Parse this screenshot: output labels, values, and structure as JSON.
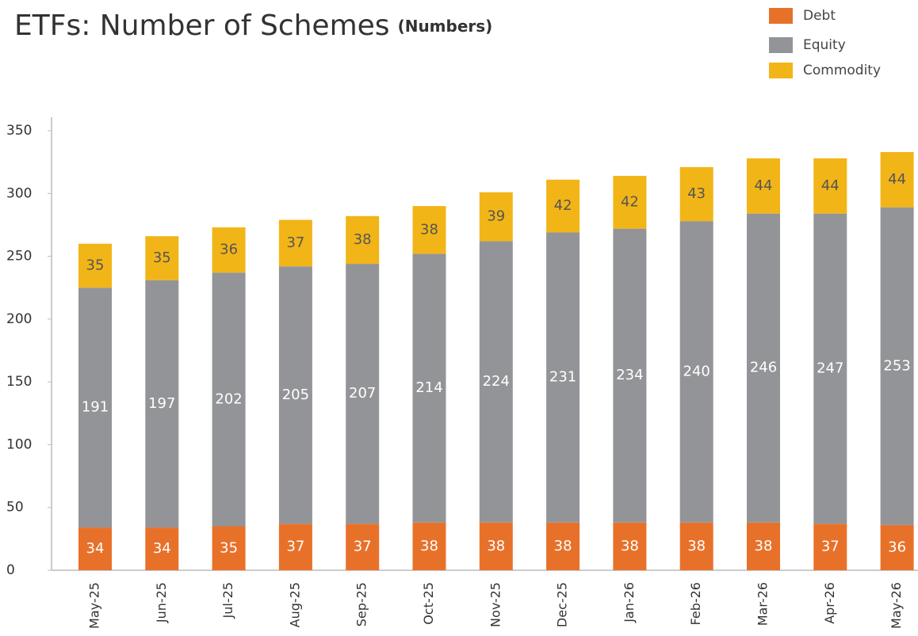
{
  "chart_data": {
    "type": "stacked_bar",
    "title": "ETFs: Number of Schemes",
    "subtitle": "(Numbers)",
    "categories": [
      "May-25",
      "Jun-25",
      "Jul-25",
      "Aug-25",
      "Sep-25",
      "Oct-25",
      "Nov-25",
      "Dec-25",
      "Jan-26",
      "Feb-26",
      "Mar-26",
      "Apr-26",
      "May-26"
    ],
    "series": [
      {
        "name": "Debt",
        "color": "#e8712a",
        "values": [
          34,
          34,
          35,
          37,
          37,
          38,
          38,
          38,
          38,
          38,
          38,
          37,
          36
        ]
      },
      {
        "name": "Equity",
        "color": "#939497",
        "values": [
          191,
          197,
          202,
          205,
          207,
          214,
          224,
          231,
          234,
          240,
          246,
          247,
          253
        ]
      },
      {
        "name": "Commodity",
        "color": "#f2b517",
        "values": [
          35,
          35,
          36,
          37,
          38,
          38,
          39,
          42,
          42,
          43,
          44,
          44,
          44
        ]
      }
    ],
    "ylim": [
      0,
      360
    ],
    "yticks": [
      0,
      50,
      100,
      150,
      200,
      250,
      300,
      350
    ],
    "legend": "top-right"
  }
}
